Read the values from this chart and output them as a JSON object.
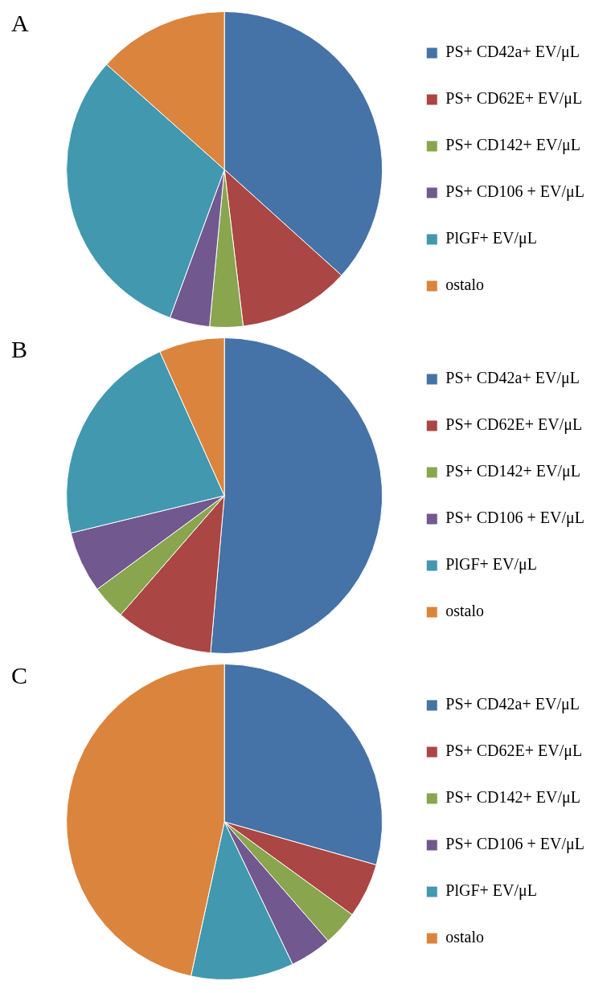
{
  "chart_data": [
    {
      "type": "pie",
      "title": "A",
      "categories": [
        "PS+ CD42a+ EV/μL",
        "PS+ CD62E+ EV/μL",
        "PS+ CD142+ EV/μL",
        "PS+ CD106 + EV/μL",
        "PlGF+ EV/μL",
        "ostalo"
      ],
      "values": [
        36.7,
        11.4,
        3.4,
        4.1,
        31.0,
        13.4
      ],
      "colors": [
        "#4572a7",
        "#aa4643",
        "#89a54e",
        "#71588f",
        "#4198af",
        "#db843d"
      ],
      "legend": "right"
    },
    {
      "type": "pie",
      "title": "B",
      "categories": [
        "PS+ CD42a+ EV/μL",
        "PS+ CD62E+ EV/μL",
        "PS+ CD142+ EV/μL",
        "PS+ CD106 + EV/μL",
        "PlGF+ EV/μL",
        "ostalo"
      ],
      "values": [
        51.4,
        10.0,
        3.5,
        6.3,
        22.1,
        6.7
      ],
      "colors": [
        "#4572a7",
        "#aa4643",
        "#89a54e",
        "#71588f",
        "#4198af",
        "#db843d"
      ],
      "legend": "right"
    },
    {
      "type": "pie",
      "title": "C",
      "categories": [
        "PS+ CD42a+ EV/μL",
        "PS+ CD62E+ EV/μL",
        "PS+ CD142+ EV/μL",
        "PS+ CD106 + EV/μL",
        "PlGF+ EV/μL",
        "ostalo"
      ],
      "values": [
        29.4,
        5.6,
        3.6,
        4.3,
        10.5,
        46.6
      ],
      "colors": [
        "#4572a7",
        "#aa4643",
        "#89a54e",
        "#71588f",
        "#4198af",
        "#db843d"
      ],
      "legend": "right"
    }
  ]
}
